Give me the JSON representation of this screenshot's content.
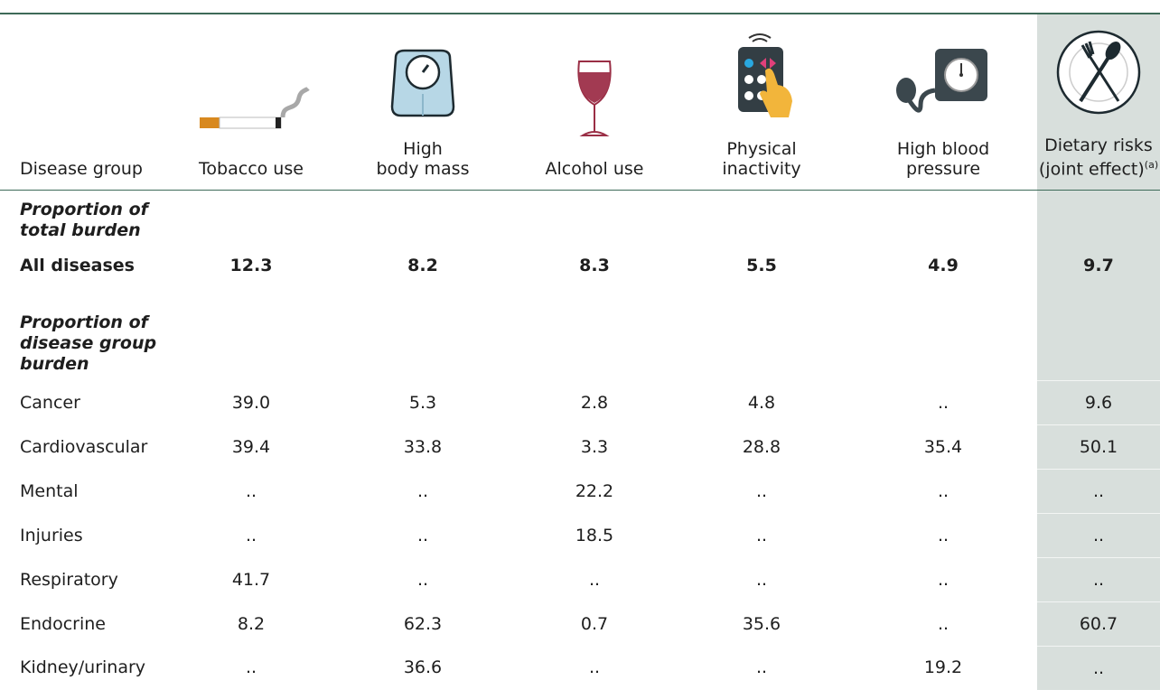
{
  "table": {
    "columns": [
      {
        "lines": [
          "Disease group"
        ]
      },
      {
        "lines": [
          "Tobacco use"
        ]
      },
      {
        "lines": [
          "High",
          "body mass"
        ]
      },
      {
        "lines": [
          "Alcohol use"
        ]
      },
      {
        "lines": [
          "Physical",
          "inactivity"
        ]
      },
      {
        "lines": [
          "High blood",
          "pressure"
        ]
      },
      {
        "lines": [
          "Dietary risks",
          "(joint effect)"
        ],
        "note": "(a)"
      }
    ],
    "sections": [
      {
        "title": "Proportion of total burden",
        "rows": [
          {
            "label": "All diseases",
            "cells": [
              "12.3",
              "8.2",
              "8.3",
              "5.5",
              "4.9",
              "9.7"
            ]
          }
        ]
      },
      {
        "title": "Proportion of disease group burden",
        "rows": [
          {
            "label": "Cancer",
            "cells": [
              "39.0",
              "5.3",
              "2.8",
              "4.8",
              "..",
              "9.6"
            ]
          },
          {
            "label": "Cardiovascular",
            "cells": [
              "39.4",
              "33.8",
              "3.3",
              "28.8",
              "35.4",
              "50.1"
            ]
          },
          {
            "label": "Mental",
            "cells": [
              "..",
              "..",
              "22.2",
              "..",
              "..",
              ".."
            ]
          },
          {
            "label": "Injuries",
            "cells": [
              "..",
              "..",
              "18.5",
              "..",
              "..",
              ".."
            ]
          },
          {
            "label": "Respiratory",
            "cells": [
              "41.7",
              "..",
              "..",
              "..",
              "..",
              ".."
            ]
          },
          {
            "label": "Endocrine",
            "cells": [
              "8.2",
              "62.3",
              "0.7",
              "35.6",
              "..",
              "60.7"
            ]
          },
          {
            "label": "Kidney/urinary",
            "cells": [
              "..",
              "36.6",
              "..",
              "..",
              "19.2",
              ".."
            ]
          }
        ]
      }
    ]
  }
}
